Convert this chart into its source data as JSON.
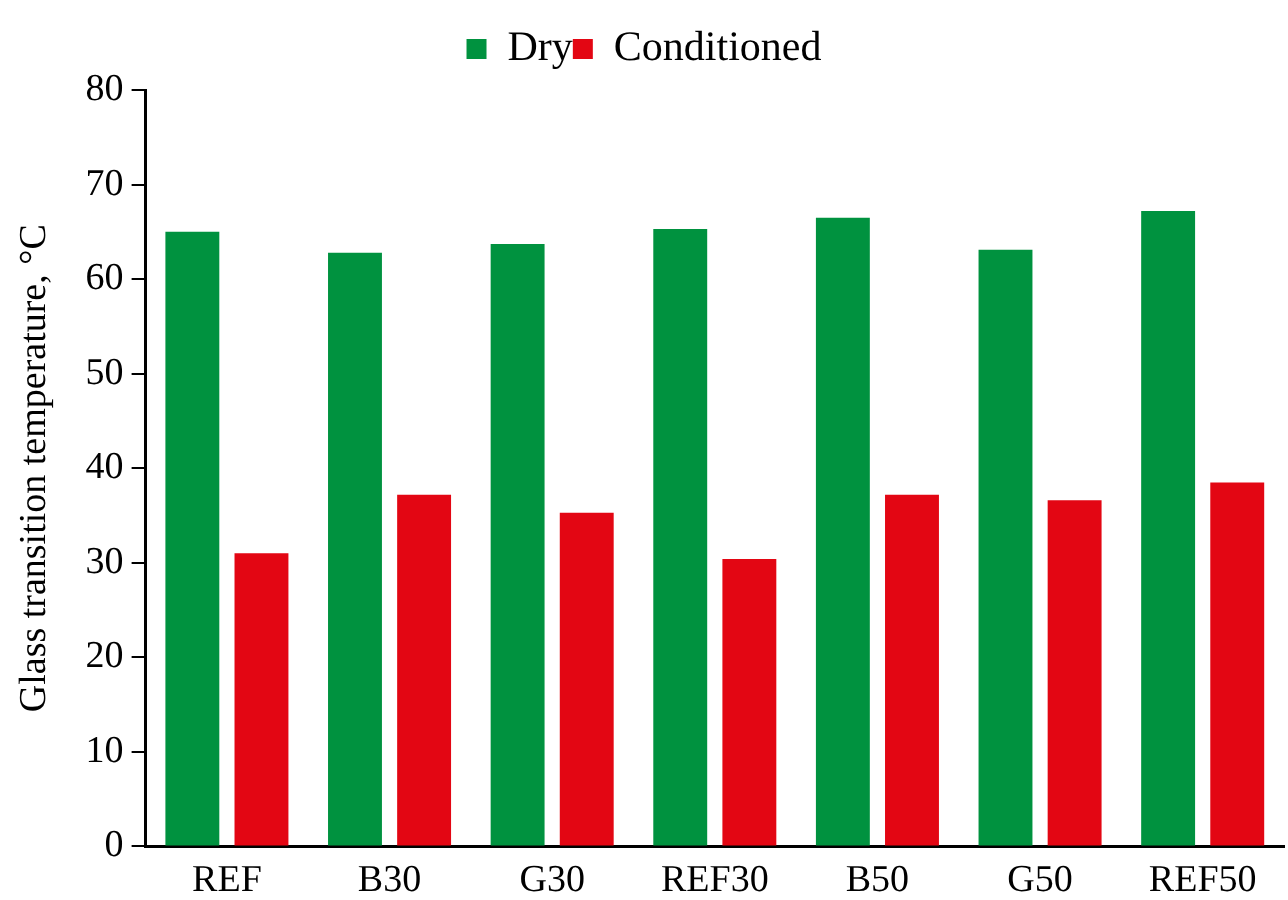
{
  "chart_data": {
    "type": "bar",
    "ylabel": "Glass transition temperature, °C",
    "categories": [
      "REF",
      "B30",
      "G30",
      "REF30",
      "B50",
      "G50",
      "REF50"
    ],
    "series": [
      {
        "name": "Dry",
        "color": "#00923f",
        "values": [
          65.0,
          62.8,
          63.7,
          65.3,
          66.5,
          63.1,
          67.2
        ]
      },
      {
        "name": "Conditioned",
        "color": "#e30613",
        "values": [
          31.0,
          37.2,
          35.3,
          30.4,
          37.2,
          36.6,
          38.5
        ]
      }
    ],
    "ylim": [
      0,
      80
    ],
    "yticks": [
      0,
      10,
      20,
      30,
      40,
      50,
      60,
      70,
      80
    ],
    "grid": false,
    "legend": "top"
  }
}
